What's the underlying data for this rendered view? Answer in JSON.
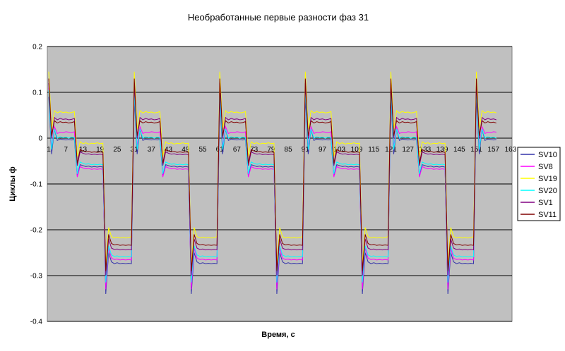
{
  "chart_data": {
    "type": "line",
    "title": "Необработанные первые разности фаз 31",
    "xlabel": "Время, с",
    "ylabel": "Циклы ф",
    "ylim": [
      -0.4,
      0.2
    ],
    "yticks": [
      0.2,
      0.1,
      0,
      -0.1,
      -0.2,
      -0.3,
      -0.4
    ],
    "ytick_labels": [
      "0.2",
      "0.1",
      "0",
      "-0.1",
      "-0.2",
      "-0.3",
      "-0.4"
    ],
    "x_categories_count": 163,
    "xtick_labels": [
      "1",
      "7",
      "13",
      "19",
      "25",
      "31",
      "37",
      "43",
      "49",
      "55",
      "61",
      "67",
      "73",
      "79",
      "85",
      "91",
      "97",
      "103",
      "109",
      "115",
      "121",
      "127",
      "133",
      "139",
      "145",
      "151",
      "157",
      "163"
    ],
    "grid": true,
    "plot_background": "#c0c0c0",
    "legend_position": "right",
    "x_period": 30,
    "series_length": 158,
    "series": [
      {
        "name": "SV10",
        "color": "#3333aa",
        "template": [
          0.09,
          -0.035,
          0.02,
          -0.005,
          -0.002,
          -0.003,
          -0.004,
          -0.003,
          -0.004,
          -0.003,
          -0.082,
          -0.058,
          -0.06,
          -0.062,
          -0.061,
          -0.063,
          -0.062,
          -0.063,
          -0.062,
          -0.063,
          -0.34,
          -0.25,
          -0.27,
          -0.274,
          -0.272,
          -0.274,
          -0.273,
          -0.274,
          -0.273,
          -0.274
        ]
      },
      {
        "name": "SV8",
        "color": "#ff00ff",
        "template": [
          0.11,
          -0.02,
          0.025,
          0.01,
          0.013,
          0.012,
          0.014,
          0.013,
          0.012,
          0.014,
          -0.085,
          -0.062,
          -0.065,
          -0.067,
          -0.066,
          -0.068,
          -0.067,
          -0.068,
          -0.067,
          -0.068,
          -0.33,
          -0.24,
          -0.262,
          -0.265,
          -0.264,
          -0.266,
          -0.265,
          -0.266,
          -0.265,
          -0.266
        ]
      },
      {
        "name": "SV19",
        "color": "#ffff00",
        "template": [
          0.145,
          0.02,
          0.06,
          0.055,
          0.058,
          0.056,
          0.057,
          0.055,
          0.056,
          0.058,
          -0.04,
          -0.008,
          -0.012,
          -0.01,
          -0.013,
          -0.011,
          -0.012,
          -0.01,
          -0.012,
          -0.011,
          -0.28,
          -0.195,
          -0.215,
          -0.218,
          -0.216,
          -0.218,
          -0.217,
          -0.218,
          -0.217,
          -0.215
        ]
      },
      {
        "name": "SV20",
        "color": "#00ffff",
        "template": [
          0.105,
          -0.025,
          0.02,
          0.0,
          0.003,
          0.001,
          0.002,
          0.0,
          0.002,
          0.001,
          -0.078,
          -0.052,
          -0.055,
          -0.057,
          -0.056,
          -0.058,
          -0.057,
          -0.058,
          -0.057,
          -0.058,
          -0.315,
          -0.235,
          -0.255,
          -0.258,
          -0.257,
          -0.259,
          -0.258,
          -0.259,
          -0.258,
          -0.259
        ]
      },
      {
        "name": "SV1",
        "color": "#800080",
        "template": [
          0.12,
          0.0,
          0.045,
          0.04,
          0.043,
          0.041,
          0.042,
          0.04,
          0.041,
          0.043,
          -0.06,
          -0.03,
          -0.033,
          -0.035,
          -0.034,
          -0.036,
          -0.035,
          -0.036,
          -0.035,
          -0.036,
          -0.3,
          -0.22,
          -0.24,
          -0.243,
          -0.242,
          -0.244,
          -0.243,
          -0.244,
          -0.243,
          -0.244
        ]
      },
      {
        "name": "SV11",
        "color": "#800000",
        "template": [
          0.13,
          0.005,
          0.038,
          0.033,
          0.036,
          0.034,
          0.035,
          0.033,
          0.034,
          0.036,
          -0.055,
          -0.025,
          -0.028,
          -0.03,
          -0.029,
          -0.031,
          -0.03,
          -0.031,
          -0.03,
          -0.031,
          -0.29,
          -0.21,
          -0.23,
          -0.233,
          -0.232,
          -0.234,
          -0.233,
          -0.234,
          -0.233,
          -0.234
        ]
      }
    ]
  }
}
